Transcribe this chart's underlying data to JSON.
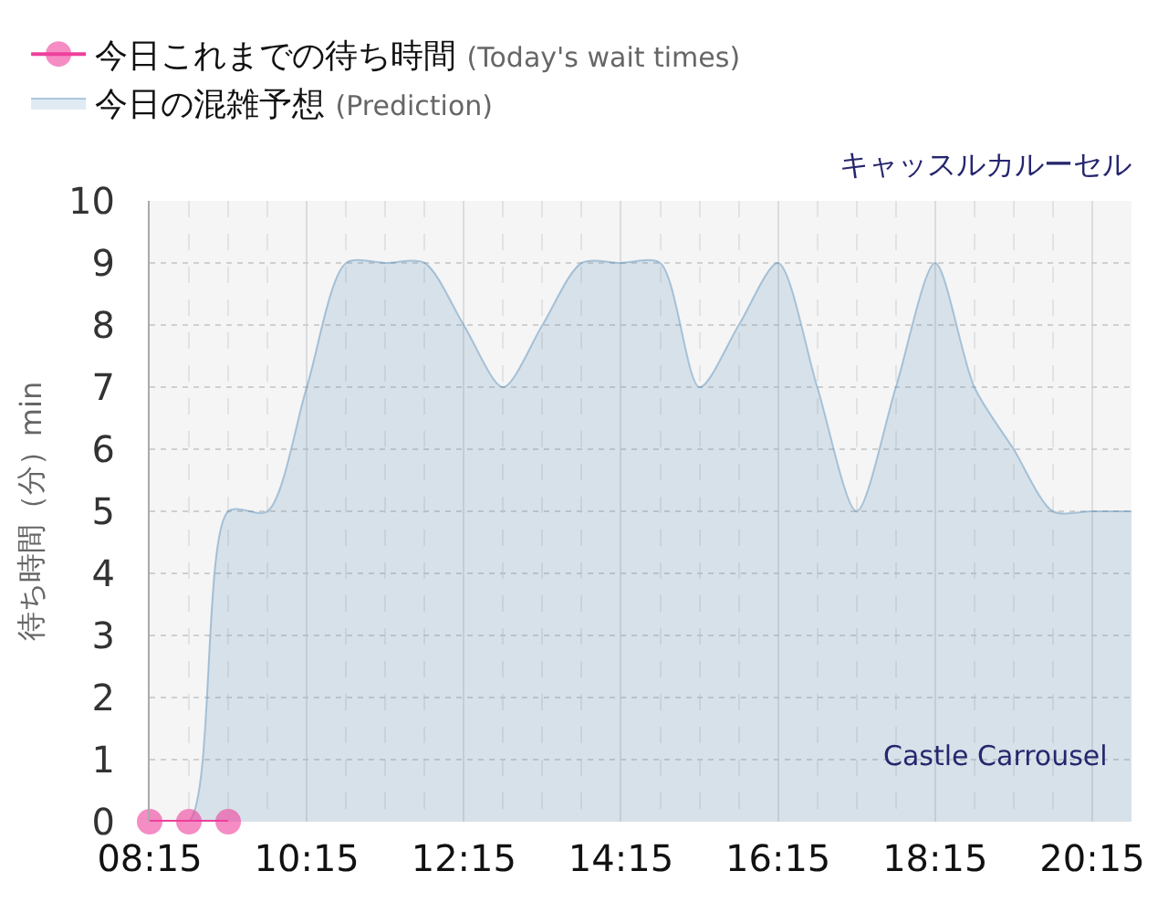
{
  "chart_data": {
    "type": "area",
    "title": "キャッスルカルーセル",
    "ylabel": "待ち時間（分）min",
    "annotations": [
      "Castle Carrousel"
    ],
    "series": [
      {
        "name": "今日これまでの待ち時間 (Today's wait times)",
        "type": "line",
        "color": "#ee3f9c",
        "marker": "circle",
        "x": [
          8.25,
          8.75,
          9.25
        ],
        "values": [
          0,
          0,
          0
        ]
      },
      {
        "name": "今日の混雑予想 (Prediction)",
        "color": "#4682b4",
        "x": [
          8.25,
          8.75,
          9.25,
          9.75,
          10.25,
          10.75,
          11.25,
          11.75,
          12.25,
          12.75,
          13.25,
          13.75,
          14.25,
          14.75,
          15.25,
          15.75,
          16.25,
          16.75,
          17.25,
          17.75,
          18.25,
          18.75,
          19.25,
          19.75,
          20.25,
          20.75
        ],
        "values": [
          0,
          0,
          5,
          5,
          7,
          9,
          9,
          9,
          8,
          7,
          8,
          9,
          9,
          9,
          7,
          8,
          9,
          7,
          5,
          7,
          9,
          7,
          6,
          5,
          5,
          5
        ]
      }
    ],
    "xlim": [
      8.25,
      20.75
    ],
    "xticks": [
      {
        "value": 8.25,
        "label": "08:15"
      },
      {
        "value": 8.75,
        "label": null
      },
      {
        "value": 9.25,
        "label": null
      },
      {
        "value": 9.75,
        "label": null
      },
      {
        "value": 10.25,
        "label": "10:15"
      },
      {
        "value": 10.75,
        "label": null
      },
      {
        "value": 11.25,
        "label": null
      },
      {
        "value": 11.75,
        "label": null
      },
      {
        "value": 12.25,
        "label": "12:15"
      },
      {
        "value": 12.75,
        "label": null
      },
      {
        "value": 13.25,
        "label": null
      },
      {
        "value": 13.75,
        "label": null
      },
      {
        "value": 14.25,
        "label": "14:15"
      },
      {
        "value": 14.75,
        "label": null
      },
      {
        "value": 15.25,
        "label": null
      },
      {
        "value": 15.75,
        "label": null
      },
      {
        "value": 16.25,
        "label": "16:15"
      },
      {
        "value": 16.75,
        "label": null
      },
      {
        "value": 17.25,
        "label": null
      },
      {
        "value": 17.75,
        "label": null
      },
      {
        "value": 18.25,
        "label": "18:15"
      },
      {
        "value": 18.75,
        "label": null
      },
      {
        "value": 19.25,
        "label": null
      },
      {
        "value": 19.75,
        "label": null
      },
      {
        "value": 20.25,
        "label": "20:15"
      },
      {
        "value": 20.75,
        "label": null
      }
    ],
    "ylim": [
      0,
      10
    ],
    "yticks": [
      0,
      1,
      2,
      3,
      4,
      5,
      6,
      7,
      8,
      9,
      10
    ],
    "grid": true,
    "legend": "top left"
  }
}
